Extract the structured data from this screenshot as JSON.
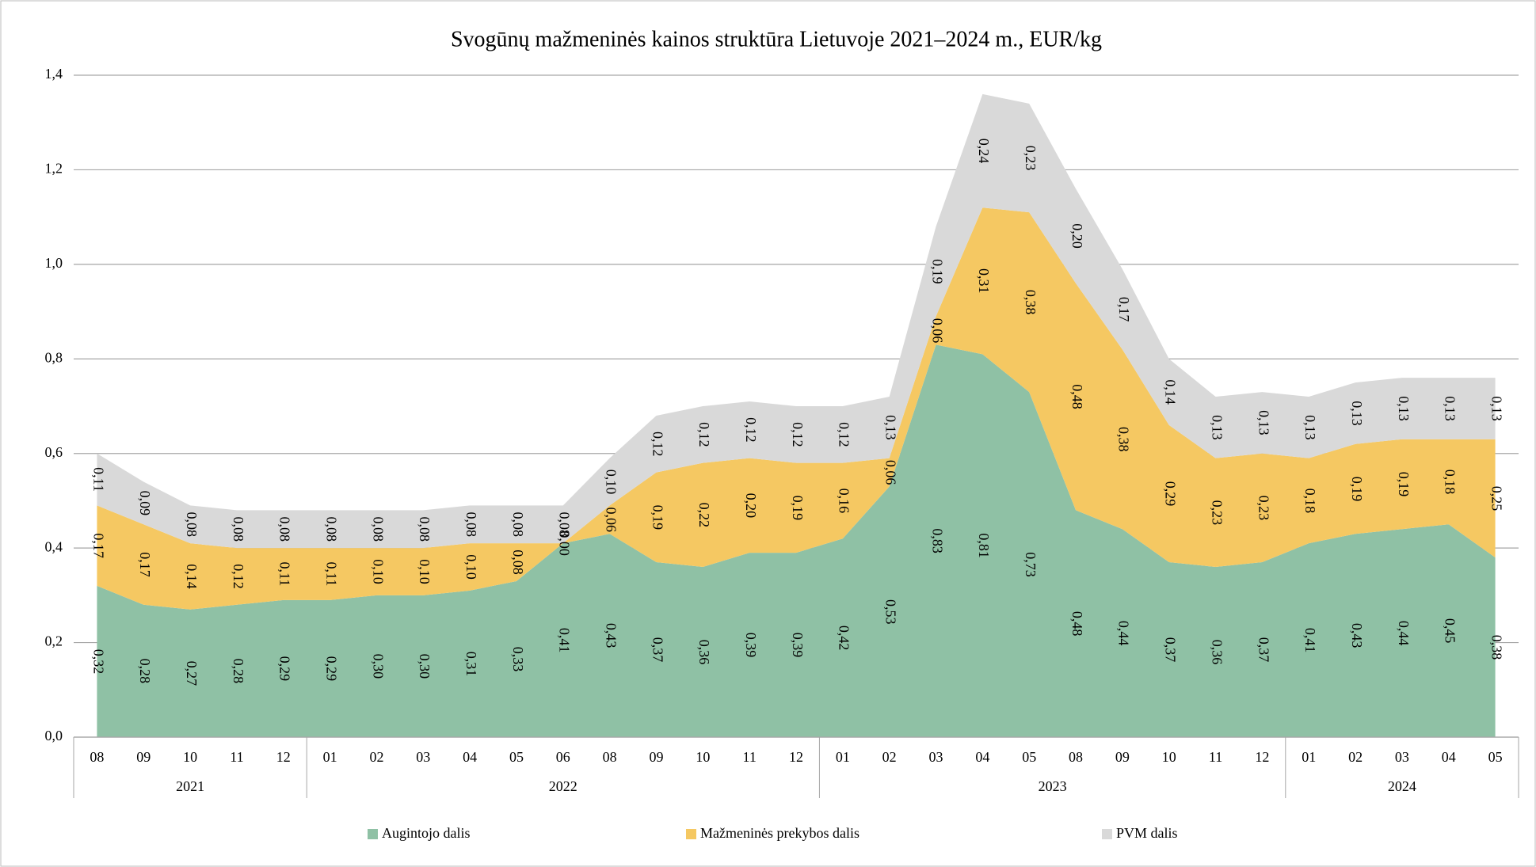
{
  "chart_data": {
    "type": "stacked_area",
    "title": "Svogūnų mažmeninės kainos struktūra Lietuvoje 2021–2024 m., EUR/kg",
    "category_groups": [
      {
        "label": "2021",
        "categories": [
          "08",
          "09",
          "10",
          "11",
          "12"
        ]
      },
      {
        "label": "2022",
        "categories": [
          "01",
          "02",
          "03",
          "04",
          "05",
          "06",
          "08",
          "09",
          "10",
          "11",
          "12"
        ]
      },
      {
        "label": "2023",
        "categories": [
          "01",
          "02",
          "03",
          "04",
          "05",
          "08",
          "09",
          "10",
          "11",
          "12"
        ]
      },
      {
        "label": "2024",
        "categories": [
          "01",
          "02",
          "03",
          "04",
          "05"
        ]
      }
    ],
    "series": [
      {
        "name": "Augintojo dalis",
        "color": "#8fc1a5",
        "values": [
          0.32,
          0.28,
          0.27,
          0.28,
          0.29,
          0.29,
          0.3,
          0.3,
          0.31,
          0.33,
          0.41,
          0.43,
          0.37,
          0.36,
          0.39,
          0.39,
          0.42,
          0.53,
          0.83,
          0.81,
          0.73,
          0.48,
          0.44,
          0.37,
          0.36,
          0.37,
          0.41,
          0.43,
          0.44,
          0.45,
          0.38
        ],
        "value_labels": [
          "0,32",
          "0,28",
          "0,27",
          "0,28",
          "0,29",
          "0,29",
          "0,30",
          "0,30",
          "0,31",
          "0,33",
          "0,41",
          "0,43",
          "0,37",
          "0,36",
          "0,39",
          "0,39",
          "0,42",
          "0,53",
          "0,83",
          "0,81",
          "0,73",
          "0,48",
          "0,44",
          "0,37",
          "0,36",
          "0,37",
          "0,41",
          "0,43",
          "0,44",
          "0,45",
          "0,38"
        ]
      },
      {
        "name": "Mažmeninės prekybos dalis",
        "color": "#f5c862",
        "values": [
          0.17,
          0.17,
          0.14,
          0.12,
          0.11,
          0.11,
          0.1,
          0.1,
          0.1,
          0.08,
          0.0,
          0.06,
          0.19,
          0.22,
          0.2,
          0.19,
          0.16,
          0.06,
          0.06,
          0.31,
          0.38,
          0.48,
          0.38,
          0.29,
          0.23,
          0.23,
          0.18,
          0.19,
          0.19,
          0.18,
          0.25
        ],
        "value_labels": [
          "0,17",
          "0,17",
          "0,14",
          "0,12",
          "0,11",
          "0,11",
          "0,10",
          "0,10",
          "0,10",
          "0,08",
          "0,00",
          "0,06",
          "0,19",
          "0,22",
          "0,20",
          "0,19",
          "0,16",
          "0,06",
          "0,06",
          "0,31",
          "0,38",
          "0,48",
          "0,38",
          "0,29",
          "0,23",
          "0,23",
          "0,18",
          "0,19",
          "0,19",
          "0,18",
          "0,25"
        ]
      },
      {
        "name": "PVM dalis",
        "color": "#d9d9d9",
        "values": [
          0.11,
          0.09,
          0.08,
          0.08,
          0.08,
          0.08,
          0.08,
          0.08,
          0.08,
          0.08,
          0.08,
          0.1,
          0.12,
          0.12,
          0.12,
          0.12,
          0.12,
          0.13,
          0.19,
          0.24,
          0.23,
          0.2,
          0.17,
          0.14,
          0.13,
          0.13,
          0.13,
          0.13,
          0.13,
          0.13,
          0.13
        ],
        "value_labels": [
          "0,11",
          "0,09",
          "0,08",
          "0,08",
          "0,08",
          "0,08",
          "0,08",
          "0,08",
          "0,08",
          "0,08",
          "0,08",
          "0,10",
          "0,12",
          "0,12",
          "0,12",
          "0,12",
          "0,12",
          "0,13",
          "0,19",
          "0,24",
          "0,23",
          "0,20",
          "0,17",
          "0,14",
          "0,13",
          "0,13",
          "0,13",
          "0,13",
          "0,13",
          "0,13",
          "0,13"
        ]
      }
    ],
    "ylim": [
      0,
      1.4
    ],
    "yticks": [
      {
        "value": 0,
        "label": "0,0"
      },
      {
        "value": 0.2,
        "label": "0,2"
      },
      {
        "value": 0.4,
        "label": "0,4"
      },
      {
        "value": 0.6,
        "label": "0,6"
      },
      {
        "value": 0.8,
        "label": "0,8"
      },
      {
        "value": 1.0,
        "label": "1,0"
      },
      {
        "value": 1.2,
        "label": "1,2"
      },
      {
        "value": 1.4,
        "label": "1,4"
      }
    ],
    "grid": true,
    "legend": "bottom"
  }
}
